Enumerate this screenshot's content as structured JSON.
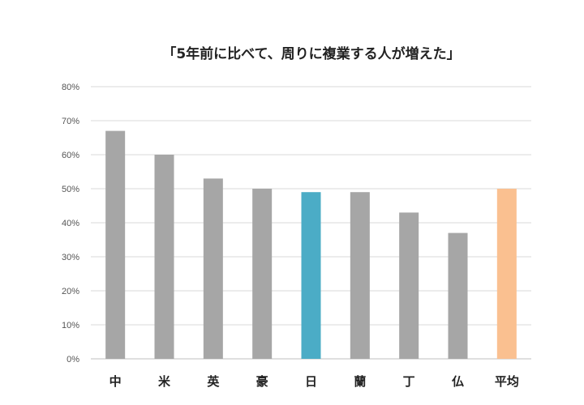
{
  "chart_data": {
    "type": "bar",
    "title": "「5年前に比べて、周りに複業する人が増えた」",
    "categories": [
      "中",
      "米",
      "英",
      "豪",
      "日",
      "蘭",
      "丁",
      "仏",
      "平均"
    ],
    "values": [
      67,
      60,
      53,
      50,
      49,
      49,
      43,
      37,
      50
    ],
    "colors": [
      "#a6a6a6",
      "#a6a6a6",
      "#a6a6a6",
      "#a6a6a6",
      "#4bacc6",
      "#a6a6a6",
      "#a6a6a6",
      "#a6a6a6",
      "#fac090"
    ],
    "ylim": [
      0,
      80
    ],
    "yticks": [
      "0%",
      "10%",
      "20%",
      "30%",
      "40%",
      "50%",
      "60%",
      "70%",
      "80%"
    ],
    "grid": true,
    "legend": "none"
  }
}
